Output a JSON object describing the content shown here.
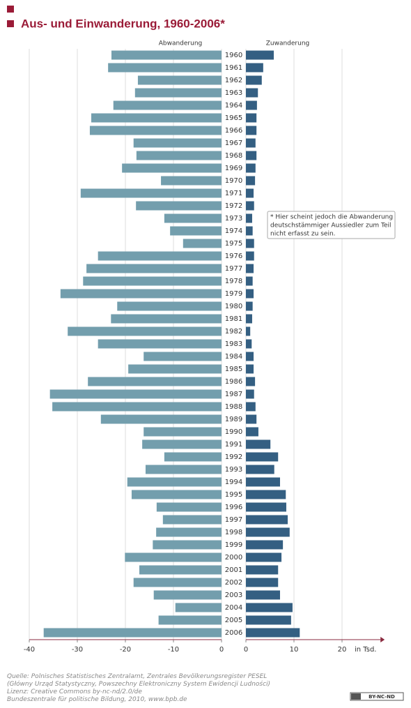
{
  "chart_data": {
    "type": "butterfly",
    "title": "Aus- und Einwanderung, 1960-2006*",
    "categories": [
      "1960",
      "1961",
      "1962",
      "1963",
      "1964",
      "1965",
      "1966",
      "1967",
      "1968",
      "1969",
      "1970",
      "1971",
      "1972",
      "1973",
      "1974",
      "1975",
      "1976",
      "1977",
      "1978",
      "1979",
      "1980",
      "1981",
      "1982",
      "1983",
      "1984",
      "1985",
      "1986",
      "1987",
      "1988",
      "1989",
      "1990",
      "1991",
      "1992",
      "1993",
      "1994",
      "1995",
      "1996",
      "1997",
      "1998",
      "1999",
      "2000",
      "2001",
      "2002",
      "2003",
      "2004",
      "2005",
      "2006"
    ],
    "series": [
      {
        "name": "Abwanderung",
        "color": "#739ead",
        "axis": "x",
        "values": [
          -22.9,
          -23.6,
          -17.4,
          -18.0,
          -22.5,
          -27.1,
          -27.4,
          -18.3,
          -17.7,
          -20.7,
          -12.6,
          -29.3,
          -17.8,
          -11.9,
          -10.7,
          -8.0,
          -25.7,
          -28.1,
          -28.8,
          -33.5,
          -21.7,
          -23.0,
          -32.0,
          -25.7,
          -16.2,
          -19.4,
          -27.8,
          -35.7,
          -35.2,
          -25.1,
          -16.2,
          -16.5,
          -11.9,
          -15.8,
          -19.6,
          -18.7,
          -13.5,
          -12.2,
          -13.6,
          -14.3,
          -20.1,
          -17.1,
          -18.3,
          -14.1,
          -9.6,
          -13.1,
          -37.0
        ]
      },
      {
        "name": "Zuwanderung",
        "color": "#345f82",
        "axis": "x2",
        "values": [
          5.8,
          3.6,
          3.3,
          2.5,
          2.3,
          2.2,
          2.2,
          2.0,
          2.2,
          2.0,
          1.9,
          1.6,
          1.7,
          1.3,
          1.4,
          1.7,
          1.7,
          1.6,
          1.4,
          1.6,
          1.4,
          1.3,
          0.9,
          1.2,
          1.6,
          1.6,
          1.9,
          1.7,
          2.0,
          2.2,
          2.6,
          5.1,
          6.7,
          5.9,
          7.1,
          8.3,
          8.4,
          8.7,
          9.1,
          7.7,
          7.4,
          6.7,
          6.7,
          7.1,
          9.7,
          9.4,
          11.2
        ]
      }
    ],
    "xlim": [
      -40,
      0
    ],
    "xticks": [
      -40,
      -30,
      -20,
      -10,
      0
    ],
    "x2lim": [
      0,
      28
    ],
    "x2ticks": [
      0,
      10,
      20
    ],
    "x2label": "in Tsd.",
    "grid": true,
    "annotation": [
      "* Hier scheint jedoch die Abwanderung",
      "deutschstämmiger Aussiedler zum Teil",
      "nicht erfasst zu sein."
    ],
    "source": [
      "Quelle: Polnisches Statistisches Zentralamt, Zentrales Bevölkerungsregister PESEL",
      "(Główny Urząd Statystyczny, Powszechny Elektroniczny System Ewidencji Ludności)",
      "Lizenz: Creative Commons by-nc-nd/2.0/de",
      "Bundeszentrale für politische Bildung, 2010, www.bpb.de"
    ],
    "license_badge": "BY-NC-ND"
  }
}
